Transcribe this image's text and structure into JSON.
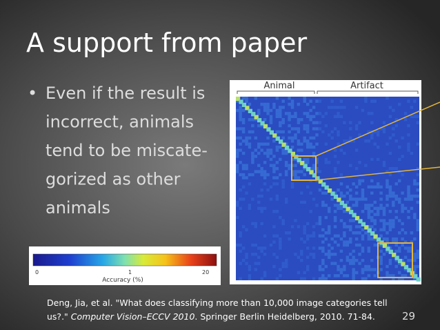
{
  "slide": {
    "title": "A support from paper",
    "bullet": {
      "marker": "•",
      "lines": [
        "Even if the result is",
        "incorrect, animals",
        "tend to be miscate-",
        "gorized as other",
        "animals"
      ]
    },
    "figure": {
      "labels": [
        "Animal",
        "Artifact"
      ]
    },
    "colorbar": {
      "ticks": [
        "0",
        "1",
        "20"
      ],
      "label": "Accuracy (%)"
    },
    "citation": {
      "line1": "Deng, Jia, et al. \"What does classifying more than 10,000 image categories tell",
      "line2_start": "us?.\" ",
      "line2_italic": "Computer Vision–ECCV 2010",
      "line2_end": ". Springer Berlin Heidelberg, 2010. 71-84."
    },
    "page_number": "29"
  }
}
